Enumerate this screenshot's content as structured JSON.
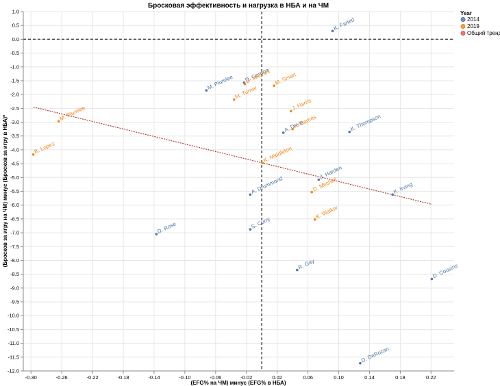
{
  "chart_data": {
    "type": "scatter",
    "title": "Бросковая эффективность и нагрузка в НБА и на ЧМ",
    "xlabel": "(EFG% на ЧМ) минус (EFG% в НБА)",
    "ylabel": "(Бросков за игру на ЧМ) минус (Бросков за игру в НБА)*",
    "xlim": [
      -0.31,
      0.25
    ],
    "ylim": [
      -12,
      1
    ],
    "x_ticks": [
      "-0.30",
      "-0.26",
      "-0.22",
      "-0.18",
      "-0.14",
      "-0.10",
      "-0.06",
      "-0.02",
      "0.02",
      "0.06",
      "0.10",
      "0.14",
      "0.18",
      "0.22"
    ],
    "y_ticks": [
      "1.0",
      "0.5",
      "0.0",
      "-0.5",
      "-1.0",
      "-1.5",
      "-2.0",
      "-2.5",
      "-3.0",
      "-3.5",
      "-4.0",
      "-4.5",
      "-5.0",
      "-5.5",
      "-6.0",
      "-6.5",
      "-7.0",
      "-7.5",
      "-8.0",
      "-8.5",
      "-9.0",
      "-9.5",
      "-10.0",
      "-10.5",
      "-11.0",
      "-11.5",
      "-12.0"
    ],
    "x_tick_values": [
      -0.3,
      -0.26,
      -0.22,
      -0.18,
      -0.14,
      -0.1,
      -0.06,
      -0.02,
      0.02,
      0.06,
      0.1,
      0.14,
      0.18,
      0.22
    ],
    "y_tick_values": [
      1.0,
      0.5,
      0.0,
      -0.5,
      -1.0,
      -1.5,
      -2.0,
      -2.5,
      -3.0,
      -3.5,
      -4.0,
      -4.5,
      -5.0,
      -5.5,
      -6.0,
      -6.5,
      -7.0,
      -7.5,
      -8.0,
      -8.5,
      -9.0,
      -9.5,
      -10.0,
      -10.5,
      -11.0,
      -11.5,
      -12.0
    ],
    "grid": true,
    "reference_lines": {
      "x": 0,
      "y": 0
    },
    "legend": {
      "title": "Year",
      "placement": "top-right",
      "entries": [
        {
          "label": "2014",
          "color": "#4c78a8"
        },
        {
          "label": "2019",
          "color": "#f58518"
        },
        {
          "label": "Общий тренд",
          "color": "#e45756"
        }
      ]
    },
    "series": [
      {
        "name": "2014",
        "color": "#4c78a8",
        "points": [
          {
            "label": "K. Faried",
            "x": 0.092,
            "y": 0.3
          },
          {
            "label": "M. Plumlee",
            "x": -0.072,
            "y": -1.85
          },
          {
            "label": "D. Gordon",
            "x": -0.023,
            "y": -1.57
          },
          {
            "label": "A. Davis",
            "x": 0.028,
            "y": -3.38
          },
          {
            "label": "K. Thompson",
            "x": 0.114,
            "y": -3.35
          },
          {
            "label": "J. Harden",
            "x": 0.074,
            "y": -5.08
          },
          {
            "label": "K. Irving",
            "x": 0.17,
            "y": -5.62
          },
          {
            "label": "A. Drummond",
            "x": -0.015,
            "y": -5.62
          },
          {
            "label": "S. Curry",
            "x": -0.015,
            "y": -6.88
          },
          {
            "label": "D. Rose",
            "x": -0.137,
            "y": -7.05
          },
          {
            "label": "R. Gay",
            "x": 0.046,
            "y": -8.35
          },
          {
            "label": "D. Cousins",
            "x": 0.221,
            "y": -8.67
          },
          {
            "label": "D. DeRozan",
            "x": 0.128,
            "y": -11.72
          }
        ]
      },
      {
        "name": "2019",
        "color": "#f58518",
        "points": [
          {
            "label": "D. Mitchell",
            "x": -0.022,
            "y": -1.62
          },
          {
            "label": "M. Turner",
            "x": -0.036,
            "y": -2.18
          },
          {
            "label": "M. Smart",
            "x": 0.016,
            "y": -1.68
          },
          {
            "label": "J. Harris",
            "x": 0.038,
            "y": -2.6
          },
          {
            "label": "H. Barnes",
            "x": 0.04,
            "y": -3.25
          },
          {
            "label": "M. Plumlee",
            "x": -0.264,
            "y": -2.97
          },
          {
            "label": "B. Lopez",
            "x": -0.297,
            "y": -4.17
          },
          {
            "label": "K. Middleton",
            "x": 0.001,
            "y": -4.48
          },
          {
            "label": "D. Mitchell",
            "x": 0.065,
            "y": -5.53
          },
          {
            "label": "K. Walker",
            "x": 0.069,
            "y": -6.52
          }
        ]
      }
    ],
    "trend": {
      "name": "Общий тренд",
      "color": "#b03a2e",
      "x": [
        -0.297,
        0.221
      ],
      "y": [
        -2.45,
        -5.97
      ]
    }
  }
}
